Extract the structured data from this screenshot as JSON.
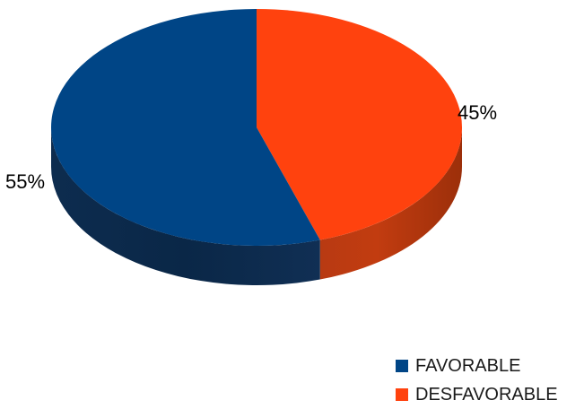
{
  "chart_data": {
    "type": "pie",
    "style": "3d",
    "title": "",
    "categories": [
      "FAVORABLE",
      "DESFAVORABLE"
    ],
    "values": [
      55,
      45
    ],
    "data_labels": [
      "55%",
      "45%"
    ],
    "colors": [
      "#004586",
      "#ff420e"
    ],
    "legend_position": "bottom-right"
  }
}
